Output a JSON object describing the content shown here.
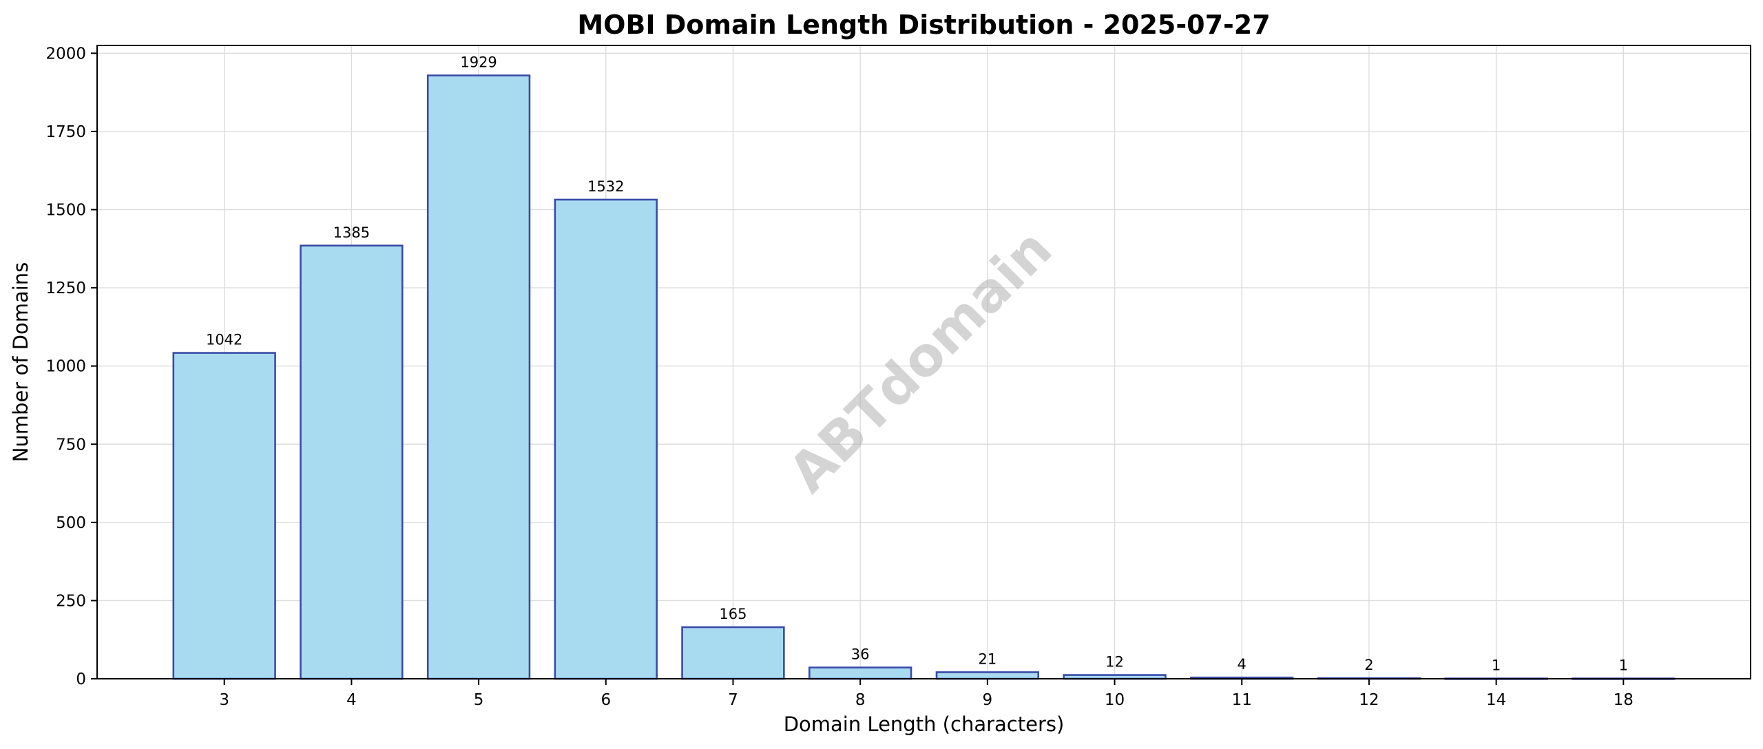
{
  "chart_data": {
    "type": "bar",
    "title": "MOBI Domain Length Distribution - 2025-07-27",
    "xlabel": "Domain Length (characters)",
    "ylabel": "Number of Domains",
    "categories": [
      "3",
      "4",
      "5",
      "6",
      "7",
      "8",
      "9",
      "10",
      "11",
      "12",
      "14",
      "18"
    ],
    "values": [
      1042,
      1385,
      1929,
      1532,
      165,
      36,
      21,
      12,
      4,
      2,
      1,
      1
    ],
    "ylim": [
      0,
      2025
    ],
    "yticks": [
      0,
      250,
      500,
      750,
      1000,
      1250,
      1500,
      1750,
      2000
    ],
    "grid": true,
    "watermark": "ABTdomain",
    "colors": {
      "bar_fill": "#a9dbf0",
      "bar_edge": "#3a4aa8"
    }
  }
}
